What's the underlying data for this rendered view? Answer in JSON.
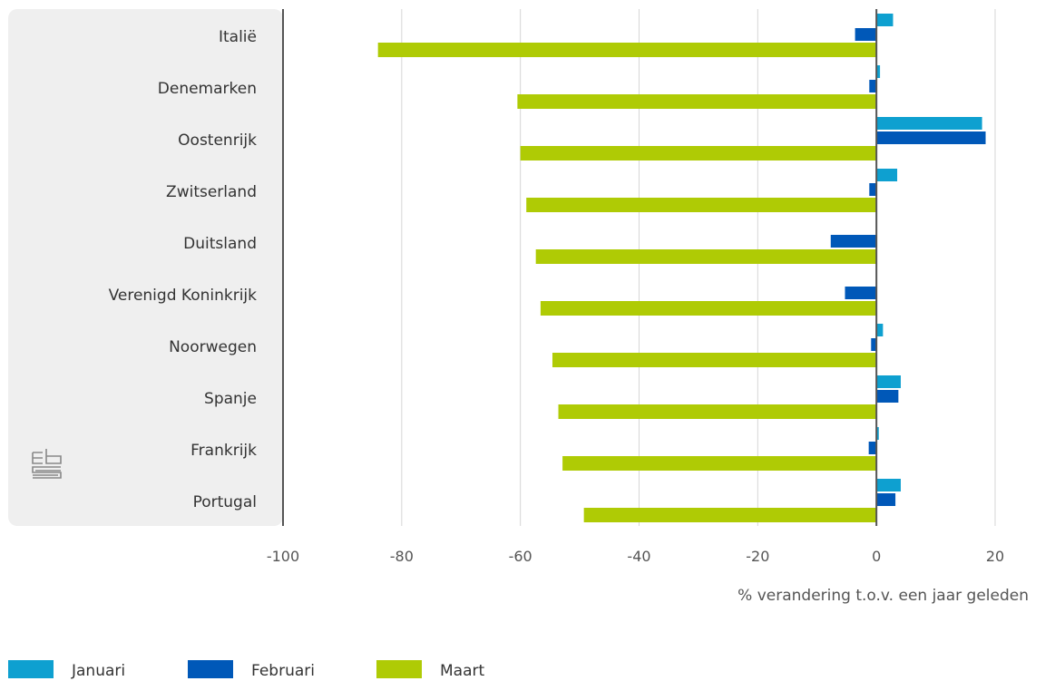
{
  "chart_data": {
    "type": "bar",
    "orientation": "horizontal",
    "categories": [
      "Italië",
      "Denemarken",
      "Oostenrijk",
      "Zwitserland",
      "Duitsland",
      "Verenigd Koninkrijk",
      "Noorwegen",
      "Spanje",
      "Frankrijk",
      "Portugal"
    ],
    "series": [
      {
        "name": "Januari",
        "color": "#0ea0d0",
        "values": [
          2.8,
          0.6,
          17.8,
          3.5,
          0.0,
          0.1,
          1.1,
          4.1,
          0.4,
          4.1
        ]
      },
      {
        "name": "Februari",
        "color": "#0058b8",
        "values": [
          -3.6,
          -1.2,
          18.4,
          -1.2,
          -7.7,
          -5.3,
          -0.9,
          3.7,
          -1.3,
          3.2
        ]
      },
      {
        "name": "Maart",
        "color": "#afcb05",
        "values": [
          -84.0,
          -60.5,
          -60.0,
          -59.0,
          -57.4,
          -56.6,
          -54.6,
          -53.6,
          -52.9,
          -49.3
        ]
      }
    ],
    "xlabel": "% verandering t.o.v. een jaar geleden",
    "ylabel": "",
    "xlim": [
      -100,
      20
    ],
    "xticks": [
      -100,
      -80,
      -60,
      -40,
      -20,
      0,
      20
    ],
    "grid": "vertical",
    "legend": "bottom-left",
    "logo": "cbs-logo"
  }
}
